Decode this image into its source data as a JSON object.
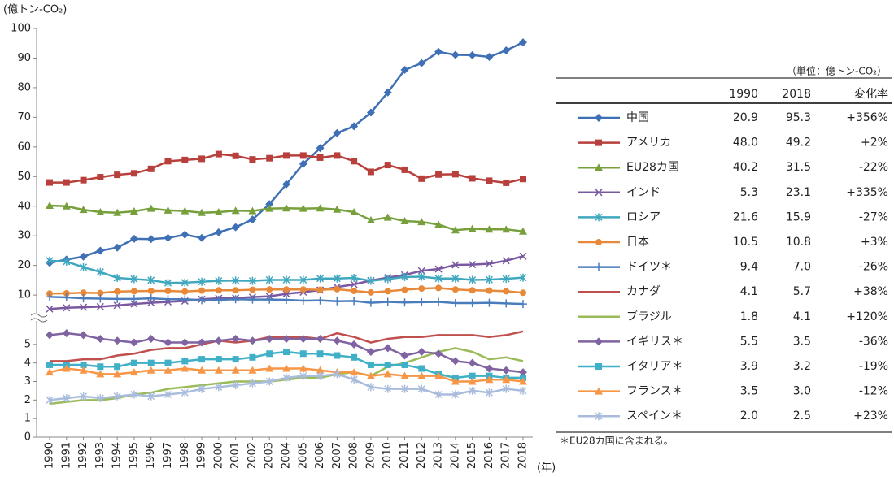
{
  "chart_data": [
    {
      "type": "line",
      "y_label": "(億トン-CO₂)",
      "ylim": [
        4,
        100
      ],
      "yticks": [
        10,
        20,
        30,
        40,
        50,
        60,
        70,
        80,
        90,
        100
      ],
      "series": [
        {
          "color": "#3f6fb5",
          "marker": "diamond",
          "values": [
            20.9,
            22.0,
            23.0,
            25.0,
            26.0,
            29.0,
            28.9,
            29.3,
            30.4,
            29.3,
            31.2,
            32.9,
            35.5,
            40.7,
            47.4,
            54.3,
            59.6,
            64.7,
            67.0,
            71.6,
            78.4,
            86.0,
            88.3,
            92.1,
            91.1,
            91.0,
            90.4,
            92.6,
            95.3
          ]
        },
        {
          "color": "#b8403c",
          "marker": "square",
          "values": [
            48.0,
            48.0,
            48.8,
            49.8,
            50.6,
            51.1,
            52.6,
            55.2,
            55.6,
            56.0,
            57.6,
            57.0,
            55.8,
            56.2,
            57.1,
            57.1,
            56.4,
            57.1,
            55.2,
            51.6,
            53.9,
            52.3,
            49.3,
            50.7,
            50.8,
            49.4,
            48.6,
            47.9,
            49.2
          ]
        },
        {
          "color": "#77a03c",
          "marker": "triangle",
          "values": [
            40.2,
            40.0,
            38.8,
            38.0,
            37.8,
            38.3,
            39.2,
            38.6,
            38.4,
            37.8,
            38.0,
            38.5,
            38.4,
            39.2,
            39.3,
            39.2,
            39.3,
            38.9,
            38.0,
            35.3,
            36.2,
            35.0,
            34.7,
            33.8,
            31.9,
            32.4,
            32.2,
            32.2,
            31.5
          ]
        },
        {
          "color": "#7a58a0",
          "marker": "x",
          "values": [
            5.3,
            5.7,
            5.9,
            6.1,
            6.5,
            7.0,
            7.4,
            7.7,
            8.0,
            8.6,
            8.9,
            9.0,
            9.3,
            9.6,
            10.4,
            11.0,
            11.7,
            12.7,
            13.6,
            14.9,
            15.9,
            16.8,
            18.2,
            18.8,
            20.2,
            20.3,
            20.6,
            21.6,
            23.1
          ]
        },
        {
          "color": "#3fa8bf",
          "marker": "star",
          "values": [
            21.6,
            21.3,
            19.4,
            17.8,
            15.8,
            15.4,
            15.0,
            14.1,
            14.2,
            14.5,
            14.8,
            14.9,
            14.8,
            15.1,
            15.1,
            15.1,
            15.6,
            15.6,
            15.8,
            14.8,
            15.4,
            16.1,
            16.2,
            15.6,
            15.6,
            15.1,
            15.2,
            15.5,
            15.9
          ]
        },
        {
          "color": "#e8893a",
          "marker": "circle",
          "values": [
            10.5,
            10.6,
            10.8,
            10.7,
            11.2,
            11.3,
            11.4,
            11.4,
            11.2,
            11.5,
            11.6,
            11.6,
            11.8,
            11.9,
            11.9,
            11.9,
            11.8,
            12.0,
            11.4,
            10.9,
            11.3,
            11.8,
            12.2,
            12.4,
            11.9,
            11.6,
            11.5,
            11.3,
            10.8
          ]
        },
        {
          "color": "#4a7dbd",
          "marker": "plus",
          "values": [
            9.4,
            9.2,
            8.9,
            8.8,
            8.7,
            8.7,
            8.9,
            8.6,
            8.6,
            8.3,
            8.4,
            8.6,
            8.5,
            8.5,
            8.4,
            8.1,
            8.2,
            7.9,
            8.0,
            7.4,
            7.7,
            7.5,
            7.6,
            7.7,
            7.3,
            7.3,
            7.4,
            7.2,
            7.0
          ]
        }
      ]
    },
    {
      "type": "line",
      "x_label": "(年)",
      "ylim": [
        0,
        6
      ],
      "yticks": [
        0,
        1,
        2,
        3,
        4,
        5
      ],
      "categories": [
        "1990",
        "1991",
        "1992",
        "1993",
        "1994",
        "1995",
        "1996",
        "1997",
        "1998",
        "1999",
        "2000",
        "2001",
        "2002",
        "2003",
        "2004",
        "2005",
        "2006",
        "2007",
        "2008",
        "2009",
        "2010",
        "2011",
        "2012",
        "2013",
        "2014",
        "2015",
        "2016",
        "2017",
        "2018"
      ],
      "series": [
        {
          "color": "#c0504d",
          "marker": "none",
          "values": [
            4.1,
            4.1,
            4.2,
            4.2,
            4.4,
            4.5,
            4.7,
            4.8,
            4.8,
            5.0,
            5.2,
            5.1,
            5.2,
            5.4,
            5.4,
            5.4,
            5.3,
            5.6,
            5.4,
            5.1,
            5.3,
            5.4,
            5.4,
            5.5,
            5.5,
            5.5,
            5.4,
            5.5,
            5.7
          ]
        },
        {
          "color": "#9bbb59",
          "marker": "none",
          "values": [
            1.8,
            1.9,
            2.0,
            2.0,
            2.1,
            2.3,
            2.4,
            2.6,
            2.7,
            2.8,
            2.9,
            3.0,
            3.0,
            3.0,
            3.1,
            3.2,
            3.2,
            3.4,
            3.5,
            3.3,
            3.8,
            4.0,
            4.3,
            4.6,
            4.8,
            4.6,
            4.2,
            4.3,
            4.1
          ]
        },
        {
          "color": "#8064a2",
          "marker": "diamond",
          "values": [
            5.5,
            5.6,
            5.5,
            5.3,
            5.2,
            5.1,
            5.3,
            5.1,
            5.1,
            5.1,
            5.2,
            5.3,
            5.2,
            5.3,
            5.3,
            5.3,
            5.3,
            5.2,
            5.0,
            4.6,
            4.8,
            4.4,
            4.6,
            4.5,
            4.1,
            4.0,
            3.7,
            3.6,
            3.5
          ]
        },
        {
          "color": "#3fb0c8",
          "marker": "square",
          "values": [
            3.9,
            3.9,
            3.9,
            3.8,
            3.8,
            4.0,
            4.0,
            4.0,
            4.1,
            4.2,
            4.2,
            4.2,
            4.3,
            4.5,
            4.6,
            4.5,
            4.5,
            4.4,
            4.3,
            3.9,
            3.9,
            3.9,
            3.7,
            3.4,
            3.2,
            3.3,
            3.3,
            3.2,
            3.2
          ]
        },
        {
          "color": "#f79646",
          "marker": "triangle",
          "values": [
            3.5,
            3.7,
            3.6,
            3.4,
            3.4,
            3.5,
            3.6,
            3.6,
            3.7,
            3.6,
            3.6,
            3.6,
            3.6,
            3.7,
            3.7,
            3.7,
            3.6,
            3.5,
            3.5,
            3.3,
            3.4,
            3.3,
            3.3,
            3.3,
            3.0,
            3.0,
            3.1,
            3.1,
            3.0
          ]
        },
        {
          "color": "#a9bcdc",
          "marker": "star",
          "values": [
            2.0,
            2.1,
            2.2,
            2.1,
            2.2,
            2.3,
            2.2,
            2.3,
            2.4,
            2.6,
            2.7,
            2.8,
            2.9,
            3.0,
            3.2,
            3.3,
            3.3,
            3.4,
            3.1,
            2.7,
            2.6,
            2.6,
            2.6,
            2.3,
            2.3,
            2.5,
            2.4,
            2.6,
            2.5
          ]
        }
      ]
    }
  ],
  "table": {
    "unit": "（単位：億トン-CO₂）",
    "columns": [
      "1990",
      "2018",
      "変化率"
    ],
    "rows": [
      [
        "中国",
        "20.9",
        "95.3",
        "+356%"
      ],
      [
        "アメリカ",
        "48.0",
        "49.2",
        "+2%"
      ],
      [
        "EU28カ国",
        "40.2",
        "31.5",
        "-22%"
      ],
      [
        "インド",
        "5.3",
        "23.1",
        "+335%"
      ],
      [
        "ロシア",
        "21.6",
        "15.9",
        "-27%"
      ],
      [
        "日本",
        "10.5",
        "10.8",
        "+3%"
      ],
      [
        "ドイツ＊",
        "9.4",
        "7.0",
        "-26%"
      ],
      [
        "カナダ",
        "4.1",
        "5.7",
        "+38%"
      ],
      [
        "ブラジル",
        "1.8",
        "4.1",
        "+120%"
      ],
      [
        "イギリス＊",
        "5.5",
        "3.5",
        "-36%"
      ],
      [
        "イタリア＊",
        "3.9",
        "3.2",
        "-19%"
      ],
      [
        "フランス＊",
        "3.5",
        "3.0",
        "-12%"
      ],
      [
        "スペイン＊",
        "2.0",
        "2.5",
        "+23%"
      ]
    ],
    "note": "＊EU28カ国に含まれる。"
  }
}
